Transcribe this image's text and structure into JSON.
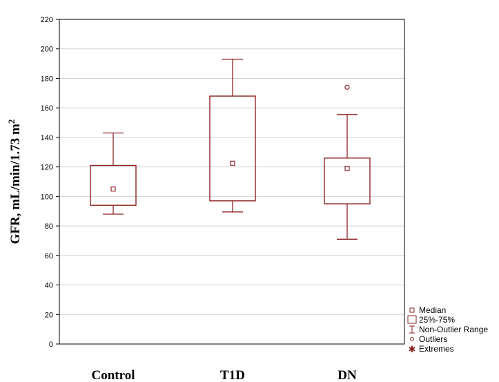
{
  "chart_data": {
    "type": "box",
    "ylabel_main": "GFR, mL/min/1.73 m",
    "ylabel_sup": "2",
    "ylim": [
      0,
      220
    ],
    "yticks": [
      0,
      20,
      40,
      60,
      80,
      100,
      120,
      140,
      160,
      180,
      200,
      220
    ],
    "grid": true,
    "legend_position": "bottom-right",
    "categories": [
      "Control",
      "T1D",
      "DN"
    ],
    "boxes": [
      {
        "category": "Control",
        "whisker_low": 88,
        "q1": 94,
        "median": 105,
        "q3": 121,
        "whisker_high": 143,
        "outliers": []
      },
      {
        "category": "T1D",
        "whisker_low": 89.5,
        "q1": 97,
        "median": 122.5,
        "q3": 168,
        "whisker_high": 193,
        "outliers": []
      },
      {
        "category": "DN",
        "whisker_low": 71,
        "q1": 95,
        "median": 119,
        "q3": 126,
        "whisker_high": 155.5,
        "outliers": [
          174
        ]
      }
    ],
    "legend": [
      "Median",
      "25%-75%",
      "Non-Outlier Range",
      "Outliers",
      "Extremes"
    ],
    "colors": {
      "series": "#8b2323",
      "grid": "#d0d0d0",
      "axis": "#000000"
    }
  }
}
